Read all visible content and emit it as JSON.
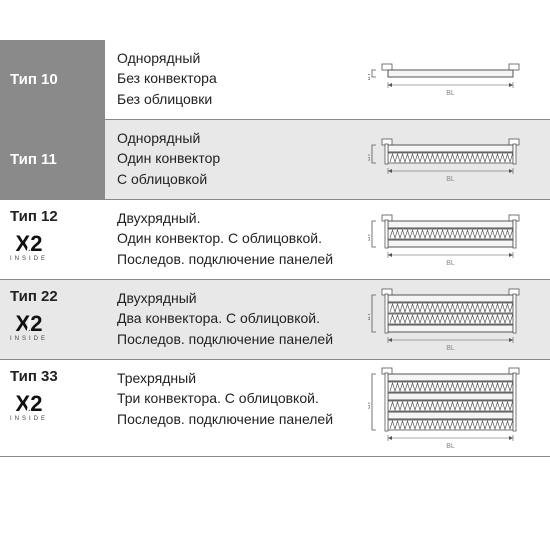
{
  "brand": {
    "x2": "X2",
    "inside": "INSIDE"
  },
  "colors": {
    "gray_box": "#8a8a8a",
    "row_alt": "#e8e8e8",
    "text_white": "#ffffff",
    "text_dark": "#222222",
    "diagram_stroke": "#555555",
    "diagram_fill": "#f5f5f5",
    "bl_label": "#888888"
  },
  "diagram": {
    "bl_label": "BL",
    "bt_label": "BT"
  },
  "rows": [
    {
      "id": "type10",
      "alt": false,
      "header_style": "gray",
      "type_label": "Тип 10",
      "has_x2": false,
      "desc_lines": [
        "Однорядный",
        "Без конвектора",
        "Без облицовки"
      ],
      "diagram": {
        "panels": 1,
        "convectors": 0,
        "cladding": false
      }
    },
    {
      "id": "type11",
      "alt": true,
      "header_style": "gray",
      "type_label": "Тип 11",
      "has_x2": false,
      "desc_lines": [
        "Однорядный",
        "Один конвектор",
        "С облицовкой"
      ],
      "diagram": {
        "panels": 1,
        "convectors": 1,
        "cladding": true
      }
    },
    {
      "id": "type12",
      "alt": false,
      "header_style": "white",
      "type_label": "Тип 12",
      "has_x2": true,
      "desc_lines": [
        "Двухрядный.",
        "Один конвектор. С облицовкой.",
        "Последов. подключение панелей"
      ],
      "diagram": {
        "panels": 2,
        "convectors": 1,
        "cladding": true
      }
    },
    {
      "id": "type22",
      "alt": true,
      "header_style": "white",
      "type_label": "Тип 22",
      "has_x2": true,
      "desc_lines": [
        "Двухрядный",
        "Два конвектора. С облицовкой.",
        "Последов. подключение панелей"
      ],
      "diagram": {
        "panels": 2,
        "convectors": 2,
        "cladding": true
      }
    },
    {
      "id": "type33",
      "alt": false,
      "header_style": "white",
      "type_label": "Тип 33",
      "has_x2": true,
      "desc_lines": [
        "Трехрядный",
        "Три конвектора. С облицовкой.",
        "Последов. подключение панелей"
      ],
      "diagram": {
        "panels": 3,
        "convectors": 3,
        "cladding": true
      }
    }
  ]
}
